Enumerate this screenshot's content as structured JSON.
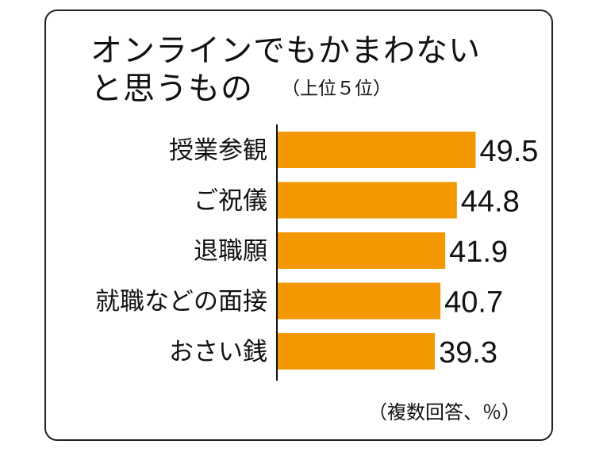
{
  "chart_data": {
    "type": "bar",
    "orientation": "horizontal",
    "title": "オンラインでもかまわないと思うもの",
    "title_line1": "オンラインでもかまわない",
    "title_line2": "と思うもの",
    "subtitle": "（上位５位）",
    "note": "（複数回答、％）",
    "categories": [
      "授業参観",
      "ご祝儀",
      "退職願",
      "就職などの面接",
      "おさい銭"
    ],
    "values": [
      49.5,
      44.8,
      41.9,
      40.7,
      39.3
    ],
    "value_labels": [
      "49.5",
      "44.8",
      "41.9",
      "40.7",
      "39.3"
    ],
    "bar_color": "#f39800",
    "grid": false,
    "legend": "none"
  }
}
